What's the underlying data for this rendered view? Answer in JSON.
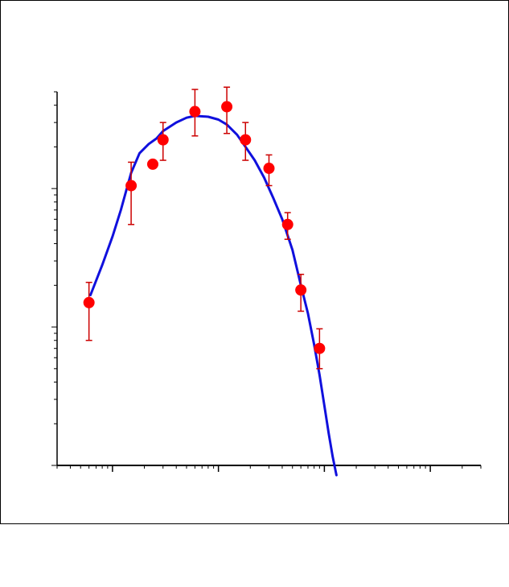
{
  "chart_data": {
    "type": "scatter",
    "xscale": "log",
    "yscale": "log",
    "xlim": [
      0.03,
      300
    ],
    "ylim": [
      0.001,
      0.5
    ],
    "grid": false,
    "legend": "none",
    "tick_labels_shown": false,
    "series": [
      {
        "kind": "points",
        "color": "#ff0000",
        "errorbar_color": "#cc0000",
        "points": [
          {
            "x": 0.06,
            "y": 0.015,
            "yerr_low": 0.007,
            "yerr_high": 0.006
          },
          {
            "x": 0.15,
            "y": 0.105,
            "yerr_low": 0.05,
            "yerr_high": 0.05
          },
          {
            "x": 0.24,
            "y": 0.15
          },
          {
            "x": 0.3,
            "y": 0.225,
            "yerr_low": 0.065,
            "yerr_high": 0.075
          },
          {
            "x": 0.6,
            "y": 0.36,
            "yerr_low": 0.12,
            "yerr_high": 0.16
          },
          {
            "x": 1.2,
            "y": 0.39,
            "yerr_low": 0.14,
            "yerr_high": 0.15
          },
          {
            "x": 1.8,
            "y": 0.225,
            "yerr_low": 0.065,
            "yerr_high": 0.075
          },
          {
            "x": 3.0,
            "y": 0.14,
            "yerr_low": 0.035,
            "yerr_high": 0.035
          },
          {
            "x": 4.5,
            "y": 0.055,
            "yerr_low": 0.012,
            "yerr_high": 0.012
          },
          {
            "x": 6.0,
            "y": 0.0185,
            "yerr_low": 0.0055,
            "yerr_high": 0.0055
          },
          {
            "x": 9.0,
            "y": 0.007,
            "yerr_low": 0.002,
            "yerr_high": 0.0027
          }
        ]
      },
      {
        "kind": "line",
        "color": "#1010dd",
        "x": [
          0.062,
          0.08,
          0.1,
          0.12,
          0.15,
          0.18,
          0.22,
          0.26,
          0.3,
          0.4,
          0.5,
          0.6,
          0.8,
          1.0,
          1.2,
          1.5,
          1.8,
          2.2,
          2.7,
          3.3,
          4.0,
          5.0,
          6.0,
          7.0,
          8.0,
          9.0,
          10.0,
          11.0,
          12.0,
          13.0
        ],
        "y": [
          0.017,
          0.028,
          0.045,
          0.07,
          0.13,
          0.18,
          0.21,
          0.23,
          0.26,
          0.3,
          0.325,
          0.335,
          0.33,
          0.315,
          0.29,
          0.245,
          0.2,
          0.16,
          0.12,
          0.085,
          0.06,
          0.036,
          0.02,
          0.0125,
          0.0075,
          0.0045,
          0.0027,
          0.0017,
          0.00115,
          0.00085
        ]
      }
    ]
  }
}
